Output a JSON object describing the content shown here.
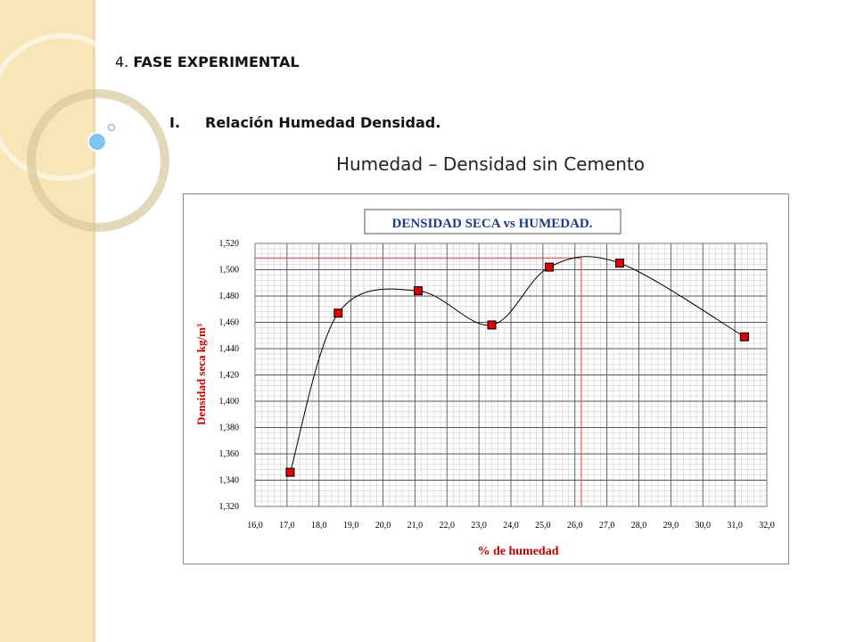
{
  "slide": {
    "heading_number": "4.",
    "heading_text": "FASE EXPERIMENTAL",
    "subheading_roman": "I.",
    "subheading_text": "Relación Humedad Densidad.",
    "title": "Humedad – Densidad sin Cemento"
  },
  "colors": {
    "side_strip": "#f6e6b8",
    "marker_fill": "#e00000",
    "reference_line": "#e04040",
    "curve": "#000000",
    "label_red": "#c00000",
    "chart_title_blue": "#1f3a8a"
  },
  "chart_data": {
    "type": "scatter",
    "title": "DENSIDAD SECA vs HUMEDAD.",
    "xlabel": "% de humedad",
    "ylabel": "Densidad seca kg/m³",
    "xlim": [
      16.0,
      32.0
    ],
    "ylim": [
      1.32,
      1.52
    ],
    "x_ticks": [
      "16,0",
      "17,0",
      "18,0",
      "19,0",
      "20,0",
      "21,0",
      "22,0",
      "23,0",
      "24,0",
      "25,0",
      "26,0",
      "27,0",
      "28,0",
      "29,0",
      "30,0",
      "31,0",
      "32,0"
    ],
    "y_ticks": [
      "1,320",
      "1,340",
      "1,360",
      "1,380",
      "1,400",
      "1,420",
      "1,440",
      "1,460",
      "1,480",
      "1,500",
      "1,520"
    ],
    "grid": true,
    "minor_grid": true,
    "smoothed_line": true,
    "points": [
      {
        "x": 17.1,
        "y": 1.346
      },
      {
        "x": 18.6,
        "y": 1.467
      },
      {
        "x": 21.1,
        "y": 1.484
      },
      {
        "x": 23.4,
        "y": 1.458
      },
      {
        "x": 25.2,
        "y": 1.502
      },
      {
        "x": 27.4,
        "y": 1.505
      },
      {
        "x": 31.3,
        "y": 1.449
      }
    ],
    "reference": {
      "x": 26.2,
      "y": 1.509
    }
  }
}
